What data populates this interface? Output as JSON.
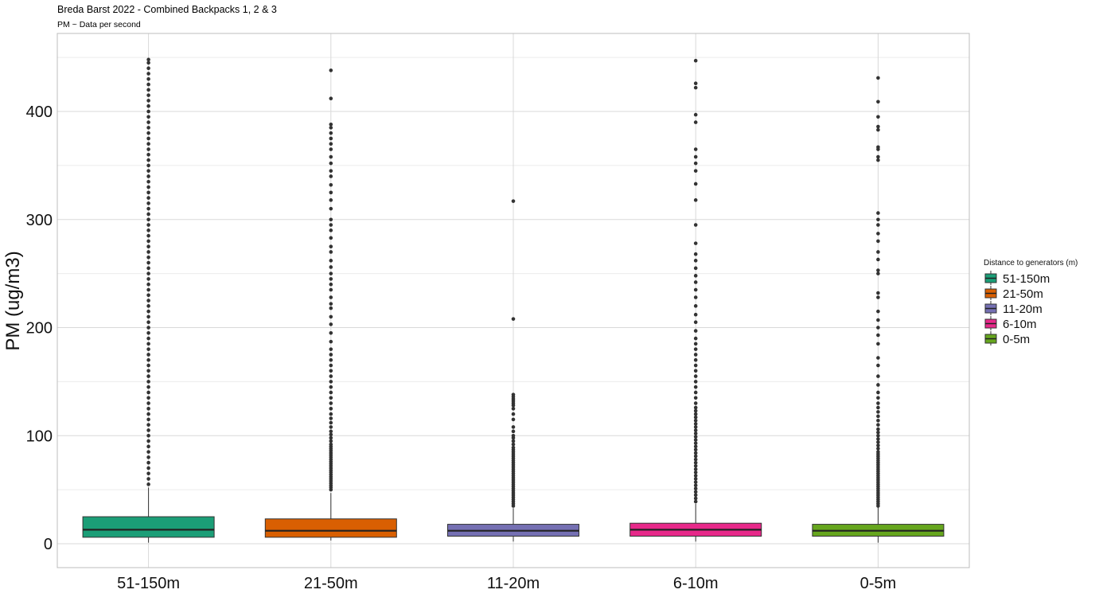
{
  "chart_data": {
    "type": "boxplot",
    "title": "Breda Barst 2022 - Combined Backpacks 1, 2 & 3",
    "subtitle": "PM ~ Data per second",
    "ylabel": "PM (ug/m3)",
    "xlabel": "",
    "ylim": [
      -22,
      450
    ],
    "yticks": [
      0,
      100,
      200,
      300,
      400
    ],
    "grid": true,
    "legend": {
      "title": "Distance to generators (m)",
      "position": "right"
    },
    "categories": [
      "51-150m",
      "21-50m",
      "11-20m",
      "6-10m",
      "0-5m"
    ],
    "series": [
      {
        "name": "51-150m",
        "color": "#1b9e77",
        "whisker_low": 1,
        "q1": 6,
        "median": 13,
        "q3": 25,
        "whisker_high": 52,
        "outliers": [
          55,
          60,
          65,
          70,
          75,
          80,
          85,
          90,
          95,
          100,
          105,
          110,
          115,
          120,
          125,
          130,
          135,
          140,
          145,
          150,
          155,
          160,
          165,
          170,
          175,
          180,
          185,
          190,
          195,
          200,
          205,
          210,
          215,
          220,
          225,
          230,
          235,
          240,
          245,
          250,
          255,
          260,
          265,
          270,
          275,
          280,
          285,
          290,
          295,
          300,
          305,
          310,
          315,
          320,
          325,
          330,
          335,
          340,
          345,
          350,
          355,
          360,
          365,
          370,
          375,
          380,
          385,
          390,
          395,
          400,
          405,
          410,
          415,
          420,
          425,
          430,
          435,
          440,
          445,
          448
        ]
      },
      {
        "name": "21-50m",
        "color": "#d95f02",
        "whisker_low": 3,
        "q1": 6,
        "median": 12,
        "q3": 23,
        "whisker_high": 47,
        "outliers": [
          50,
          52,
          54,
          56,
          58,
          60,
          62,
          64,
          66,
          68,
          70,
          72,
          74,
          76,
          78,
          80,
          82,
          84,
          86,
          88,
          90,
          92,
          95,
          98,
          101,
          104,
          108,
          112,
          116,
          120,
          125,
          130,
          135,
          140,
          145,
          150,
          155,
          160,
          165,
          170,
          175,
          180,
          187,
          195,
          203,
          210,
          218,
          222,
          228,
          235,
          240,
          245,
          250,
          256,
          262,
          270,
          275,
          283,
          290,
          295,
          300,
          310,
          318,
          325,
          332,
          340,
          345,
          352,
          358,
          365,
          370,
          375,
          380,
          385,
          388,
          412,
          438
        ]
      },
      {
        "name": "11-20m",
        "color": "#7570b3",
        "whisker_low": 2,
        "q1": 7,
        "median": 12,
        "q3": 18,
        "whisker_high": 33,
        "outliers": [
          35,
          37,
          39,
          41,
          43,
          45,
          47,
          49,
          51,
          53,
          55,
          57,
          59,
          61,
          63,
          65,
          67,
          69,
          71,
          73,
          75,
          77,
          79,
          81,
          83,
          85,
          87,
          89,
          92,
          95,
          98,
          100,
          104,
          108,
          115,
          120,
          125,
          128,
          130,
          132,
          134,
          136,
          138,
          208,
          317
        ]
      },
      {
        "name": "6-10m",
        "color": "#e7298a",
        "whisker_low": 2,
        "q1": 7,
        "median": 13,
        "q3": 19,
        "whisker_high": 37,
        "outliers": [
          39,
          42,
          45,
          48,
          51,
          54,
          57,
          60,
          63,
          66,
          69,
          72,
          75,
          78,
          81,
          84,
          87,
          90,
          93,
          96,
          99,
          102,
          105,
          108,
          111,
          114,
          117,
          120,
          123,
          126,
          130,
          135,
          140,
          145,
          150,
          155,
          160,
          165,
          170,
          175,
          180,
          185,
          190,
          197,
          205,
          212,
          220,
          228,
          235,
          242,
          248,
          255,
          262,
          268,
          278,
          295,
          318,
          333,
          345,
          352,
          358,
          365,
          390,
          397,
          422,
          426,
          447
        ]
      },
      {
        "name": "0-5m",
        "color": "#66a61e",
        "whisker_low": 1,
        "q1": 7,
        "median": 12,
        "q3": 18,
        "whisker_high": 34,
        "outliers": [
          35,
          37,
          39,
          41,
          43,
          45,
          47,
          49,
          51,
          53,
          55,
          57,
          59,
          61,
          63,
          65,
          67,
          69,
          71,
          73,
          75,
          77,
          79,
          81,
          83,
          85,
          88,
          91,
          94,
          97,
          100,
          103,
          106,
          110,
          114,
          118,
          122,
          126,
          130,
          135,
          140,
          147,
          155,
          165,
          172,
          185,
          193,
          200,
          207,
          215,
          228,
          232,
          250,
          253,
          263,
          270,
          280,
          287,
          295,
          300,
          306,
          355,
          358,
          365,
          367,
          383,
          386,
          395,
          409,
          431
        ]
      }
    ]
  }
}
